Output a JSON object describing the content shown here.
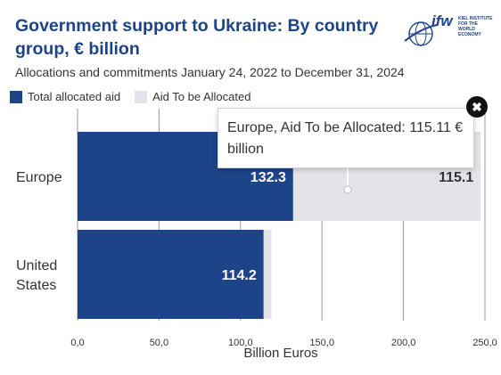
{
  "header": {
    "title": "Government support to Ukraine: By country group, € billion",
    "subtitle": "Allocations and commitments January 24, 2022 to December 31, 2024"
  },
  "logo": {
    "text": "ifw",
    "institute": "KIEL INSTITUTE FOR THE WORLD ECONOMY",
    "icon": "globe-icon"
  },
  "tooltip": {
    "text": "Europe, Aid To be Allocated: 115.11 € billion",
    "close_icon": "close-icon"
  },
  "colors": {
    "allocated": "#1d4488",
    "to_be_allocated": "#e3e4ea",
    "grid": "#999999"
  },
  "chart_data": {
    "type": "bar",
    "orientation": "horizontal",
    "stacked": true,
    "categories": [
      "Europe",
      "United States"
    ],
    "series": [
      {
        "name": "Total allocated aid",
        "values": [
          132.3,
          114.2
        ],
        "labels": [
          "132.3",
          "114.2"
        ]
      },
      {
        "name": "Aid To be Allocated",
        "values": [
          115.11,
          4.8
        ],
        "labels": [
          "115.1",
          ""
        ]
      }
    ],
    "xlabel": "Billion Euros",
    "xlim": [
      0,
      250
    ],
    "xticks": [
      0,
      50,
      100,
      150,
      200,
      250
    ],
    "xtick_labels": [
      "0,0",
      "50,0",
      "100,0",
      "150,0",
      "200,0",
      "250,0"
    ],
    "grid": true,
    "legend_position": "top-left"
  }
}
